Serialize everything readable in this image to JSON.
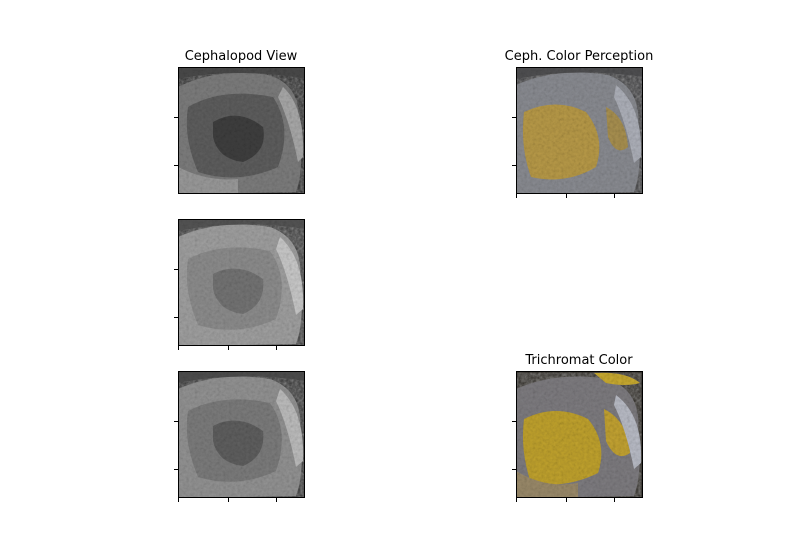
{
  "panels": [
    {
      "id": "r1c1",
      "title": "Cephalopod View",
      "style": "gray-dark"
    },
    {
      "id": "r1c2",
      "title": "Ceph. Color Perception",
      "style": "color-muted"
    },
    {
      "id": "r2c1",
      "title": "",
      "style": "gray-light"
    },
    {
      "id": "r3c1",
      "title": "",
      "style": "gray-mid"
    },
    {
      "id": "r3c2",
      "title": "Trichromat Color",
      "style": "color-vivid"
    }
  ]
}
